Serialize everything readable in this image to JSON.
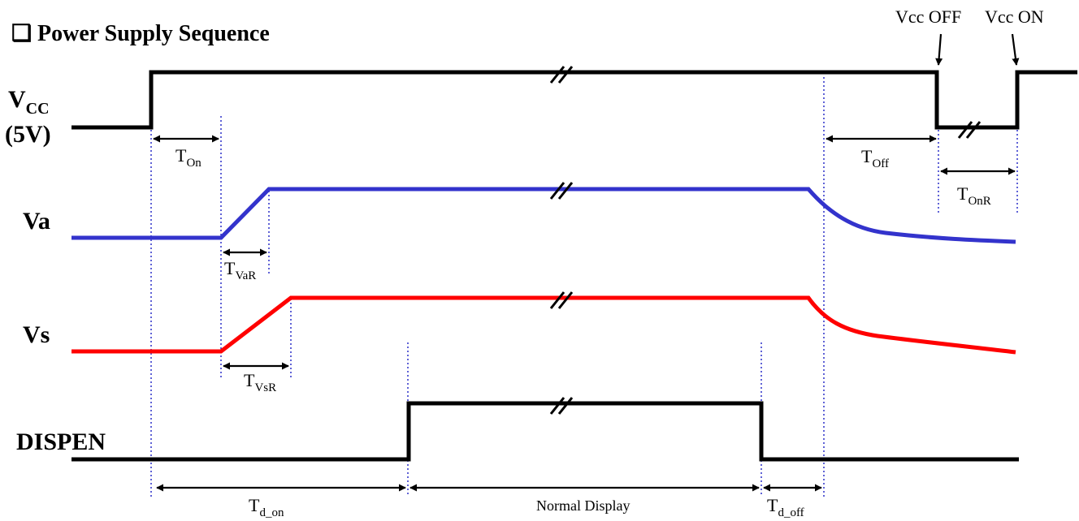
{
  "title": {
    "checkbox_glyph": "❑",
    "text": "Power Supply Sequence"
  },
  "signals": {
    "vcc": {
      "label_main": "V",
      "label_sub": "CC",
      "label_note": "(5V)",
      "color": "#000000"
    },
    "va": {
      "label": "Va",
      "color": "#3333cc"
    },
    "vs": {
      "label": "Vs",
      "color": "#ff0000"
    },
    "dispen": {
      "label": "DISPEN",
      "color": "#000000"
    }
  },
  "events": {
    "vcc_off": "Vcc OFF",
    "vcc_on": "Vcc ON"
  },
  "timings": {
    "t_on": {
      "main": "T",
      "sub": "On"
    },
    "t_off": {
      "main": "T",
      "sub": "Off"
    },
    "t_onr": {
      "main": "T",
      "sub": "OnR"
    },
    "t_var": {
      "main": "T",
      "sub": "VaR"
    },
    "t_vsr": {
      "main": "T",
      "sub": "VsR"
    },
    "t_d_on": {
      "main": "T",
      "sub": "d_on"
    },
    "t_d_off": {
      "main": "T",
      "sub": "d_off"
    }
  },
  "normal_display": "Normal Display",
  "colors": {
    "guide": "#2a2fc8",
    "va": "#3333cc",
    "vs": "#ff0000",
    "black": "#000000"
  }
}
